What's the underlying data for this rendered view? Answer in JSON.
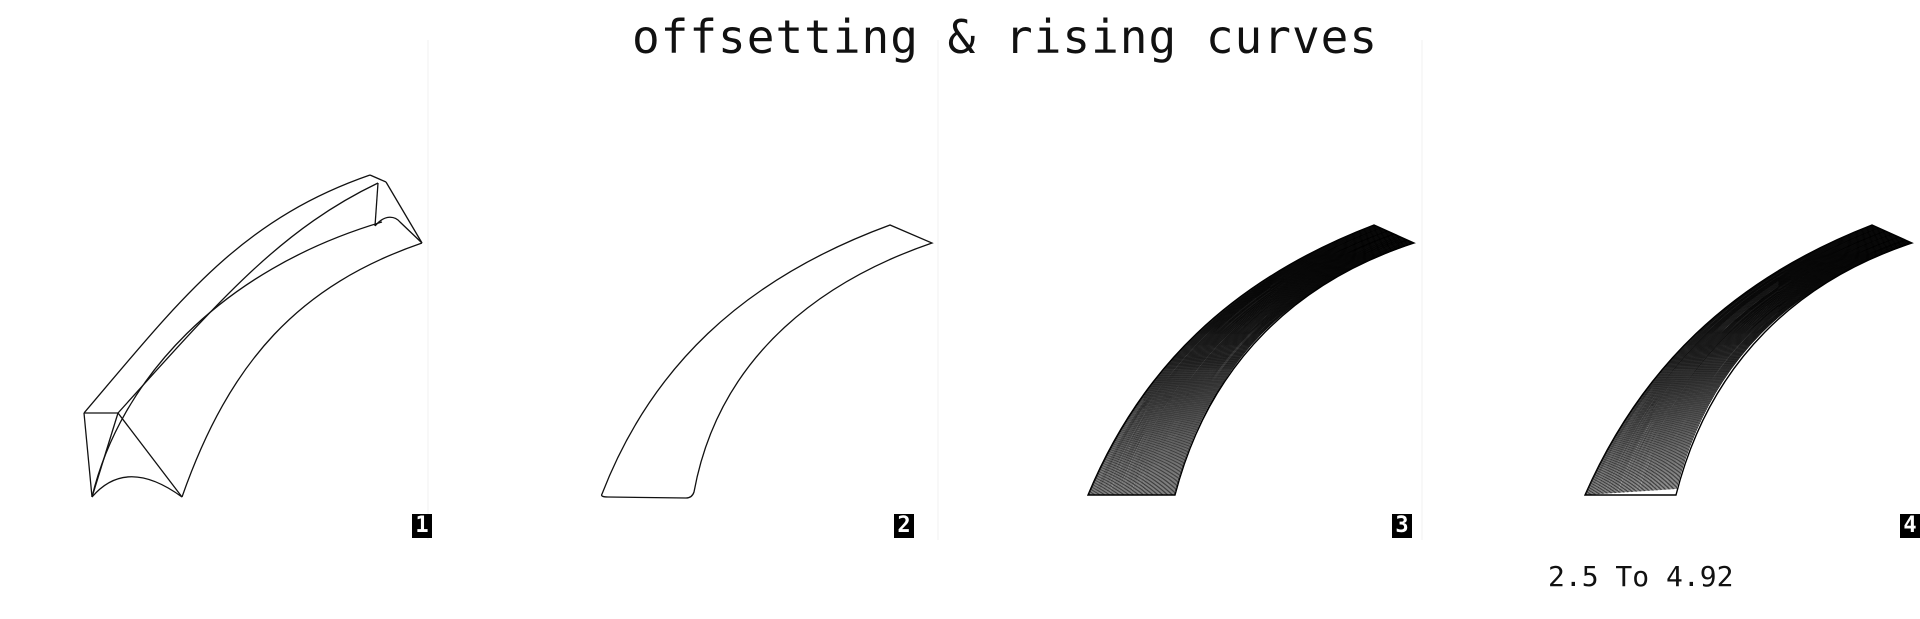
{
  "title": "offsetting & rising curves",
  "panels": [
    {
      "number": "1"
    },
    {
      "number": "2"
    },
    {
      "number": "3"
    },
    {
      "number": "4"
    }
  ],
  "range_label": "2.5 To 4.92"
}
